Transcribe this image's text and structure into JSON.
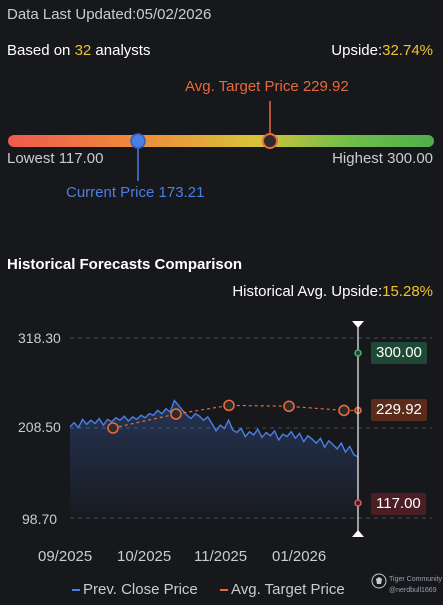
{
  "header": {
    "data_last_updated_label": "Data Last Updated:",
    "data_last_updated_date": "05/02/2026",
    "based_on_prefix": "Based on ",
    "analyst_count": "32",
    "based_on_suffix": " analysts",
    "upside_label": "Upside:",
    "upside_value": "32.74%"
  },
  "gauge": {
    "avg_target_label": "Avg. Target Price 229.92",
    "lowest_label": "Lowest 117.00",
    "highest_label": "Highest 300.00",
    "current_label": "Current Price 173.21",
    "low": 117.0,
    "high": 300.0,
    "current": 173.21,
    "avg_target": 229.92,
    "colors": {
      "current": "#4a7fe6",
      "avg": "#e8693a"
    }
  },
  "historical": {
    "title": "Historical Forecasts Comparison",
    "upside_label": "Historical Avg. Upside:",
    "upside_value": "15.28%"
  },
  "badges": {
    "high": "300.00",
    "avg": "229.92",
    "low": "117.00"
  },
  "legend": {
    "prev_close": "Prev. Close Price",
    "avg_target": "Avg. Target Price"
  },
  "watermark": {
    "brand": "Tiger Community",
    "user": "@nerdbull1669"
  },
  "chart_data": {
    "type": "line",
    "y_ticks": [
      "318.30",
      "208.50",
      "98.70"
    ],
    "x_ticks": [
      "09/2025",
      "10/2025",
      "11/2025",
      "01/2026"
    ],
    "ylim": [
      98.7,
      318.3
    ],
    "grid": true,
    "legend_position": "bottom",
    "series": [
      {
        "name": "Prev. Close Price",
        "color": "#4a7fe6",
        "values": [
          210,
          215,
          209,
          219,
          213,
          218,
          214,
          220,
          212,
          219,
          216,
          221,
          218,
          223,
          217,
          222,
          219,
          224,
          221,
          226,
          224,
          230,
          226,
          232,
          228,
          242,
          236,
          230,
          224,
          220,
          226,
          223,
          218,
          222,
          214,
          205,
          212,
          208,
          218,
          206,
          203,
          208,
          198,
          204,
          200,
          207,
          197,
          203,
          199,
          205,
          194,
          201,
          198,
          204,
          196,
          202,
          192,
          199,
          195,
          190,
          196,
          185,
          193,
          188,
          183,
          190,
          179,
          186,
          176,
          173.21
        ]
      },
      {
        "name": "Avg. Target Price",
        "color": "#e8693a",
        "values": [
          208.5,
          225.5,
          236.1,
          235.0,
          229.9,
          229.92
        ]
      }
    ]
  }
}
